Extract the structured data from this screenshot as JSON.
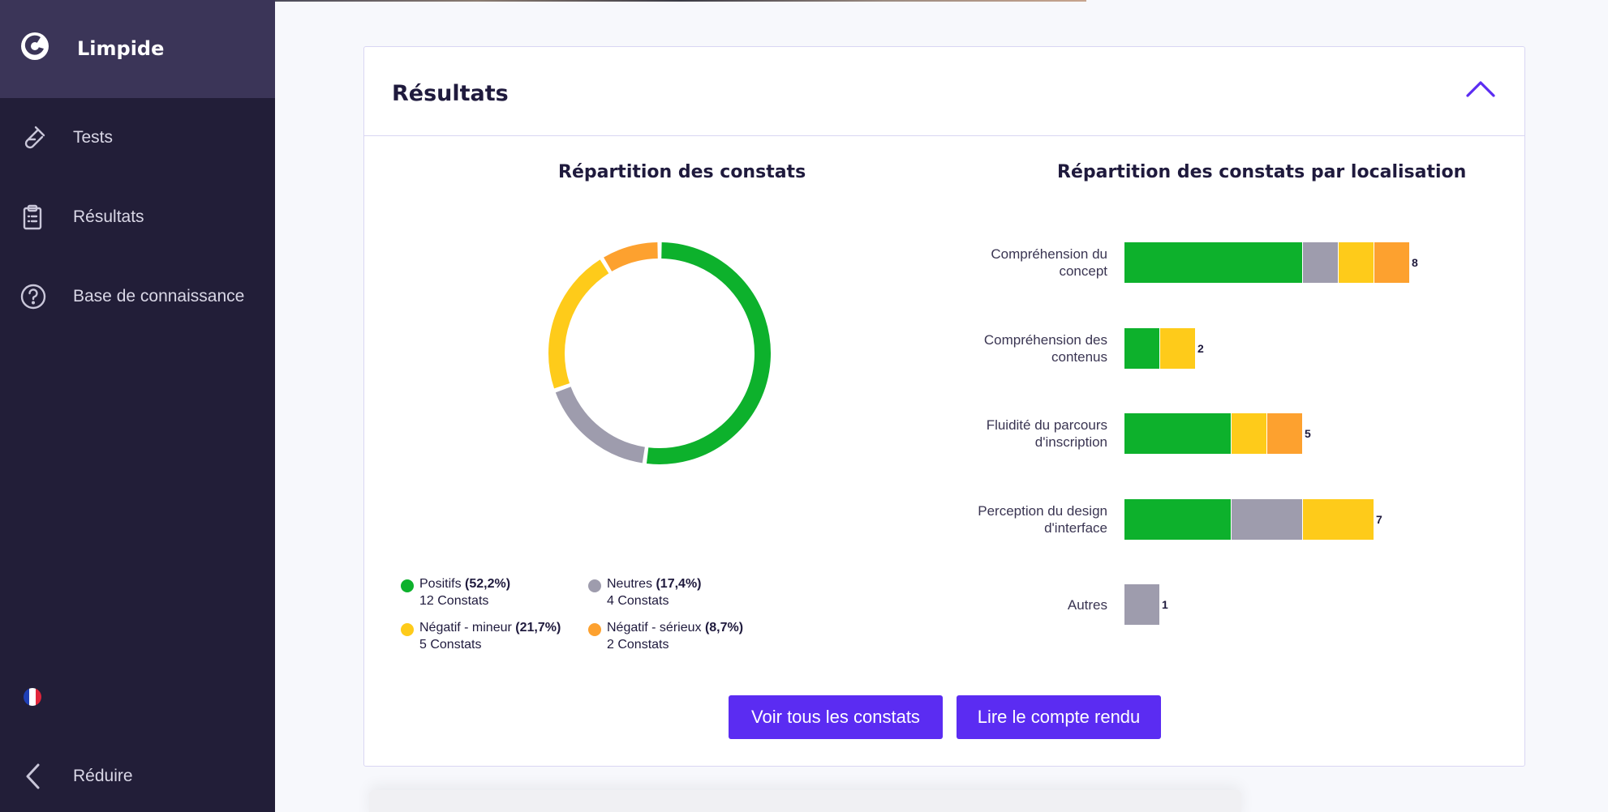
{
  "sidebar": {
    "brand": "Limpide",
    "items": [
      {
        "label": "Tests",
        "icon": "flask-icon"
      },
      {
        "label": "Résultats",
        "icon": "clipboard-icon"
      },
      {
        "label": "Base de connaissance",
        "icon": "help-circle-icon"
      }
    ],
    "language_flag": "fr-flag-icon",
    "collapse_label": "Réduire"
  },
  "card": {
    "title": "Résultats",
    "toggle_icon": "chevron-up-icon"
  },
  "donut": {
    "title": "Répartition des constats"
  },
  "bars": {
    "title": "Répartition des constats par localisation"
  },
  "colors": {
    "positif": "#0db12c",
    "neutre": "#9e9cad",
    "mineur": "#fecb1a",
    "serieux": "#fda12f",
    "accent": "#5b2cf2"
  },
  "chart_data": [
    {
      "type": "pie",
      "title": "Répartition des constats",
      "series": [
        {
          "name": "Positifs",
          "percent_label": "(52,2%)",
          "count_label": "12 Constats",
          "value": 12,
          "color": "#0db12c"
        },
        {
          "name": "Neutres",
          "percent_label": "(17,4%)",
          "count_label": "4 Constats",
          "value": 4,
          "color": "#9e9cad"
        },
        {
          "name": "Négatif - mineur",
          "percent_label": "(21,7%)",
          "count_label": "5 Constats",
          "value": 5,
          "color": "#fecb1a"
        },
        {
          "name": "Négatif - sérieux",
          "percent_label": "(8,7%)",
          "count_label": "2 Constats",
          "value": 2,
          "color": "#fda12f"
        }
      ]
    },
    {
      "type": "bar",
      "orientation": "horizontal",
      "stacked": true,
      "title": "Répartition des constats par localisation",
      "categories": [
        [
          "Compréhension du",
          "concept"
        ],
        [
          "Compréhension des",
          "contenus"
        ],
        [
          "Fluidité du parcours",
          "d'inscription"
        ],
        [
          "Perception du design",
          "d'interface"
        ],
        [
          "Autres"
        ]
      ],
      "series": [
        {
          "name": "Positifs",
          "color": "#0db12c",
          "values": [
            5,
            1,
            3,
            3,
            0
          ]
        },
        {
          "name": "Neutres",
          "color": "#9e9cad",
          "values": [
            1,
            0,
            0,
            2,
            1
          ]
        },
        {
          "name": "Négatif - mineur",
          "color": "#fecb1a",
          "values": [
            1,
            1,
            1,
            2,
            0
          ]
        },
        {
          "name": "Négatif - sérieux",
          "color": "#fda12f",
          "values": [
            1,
            0,
            1,
            0,
            0
          ]
        }
      ],
      "totals": [
        "8",
        "2",
        "5",
        "7",
        "1"
      ]
    }
  ],
  "buttons": {
    "see_all": "Voir tous les constats",
    "read_report": "Lire le compte rendu"
  }
}
